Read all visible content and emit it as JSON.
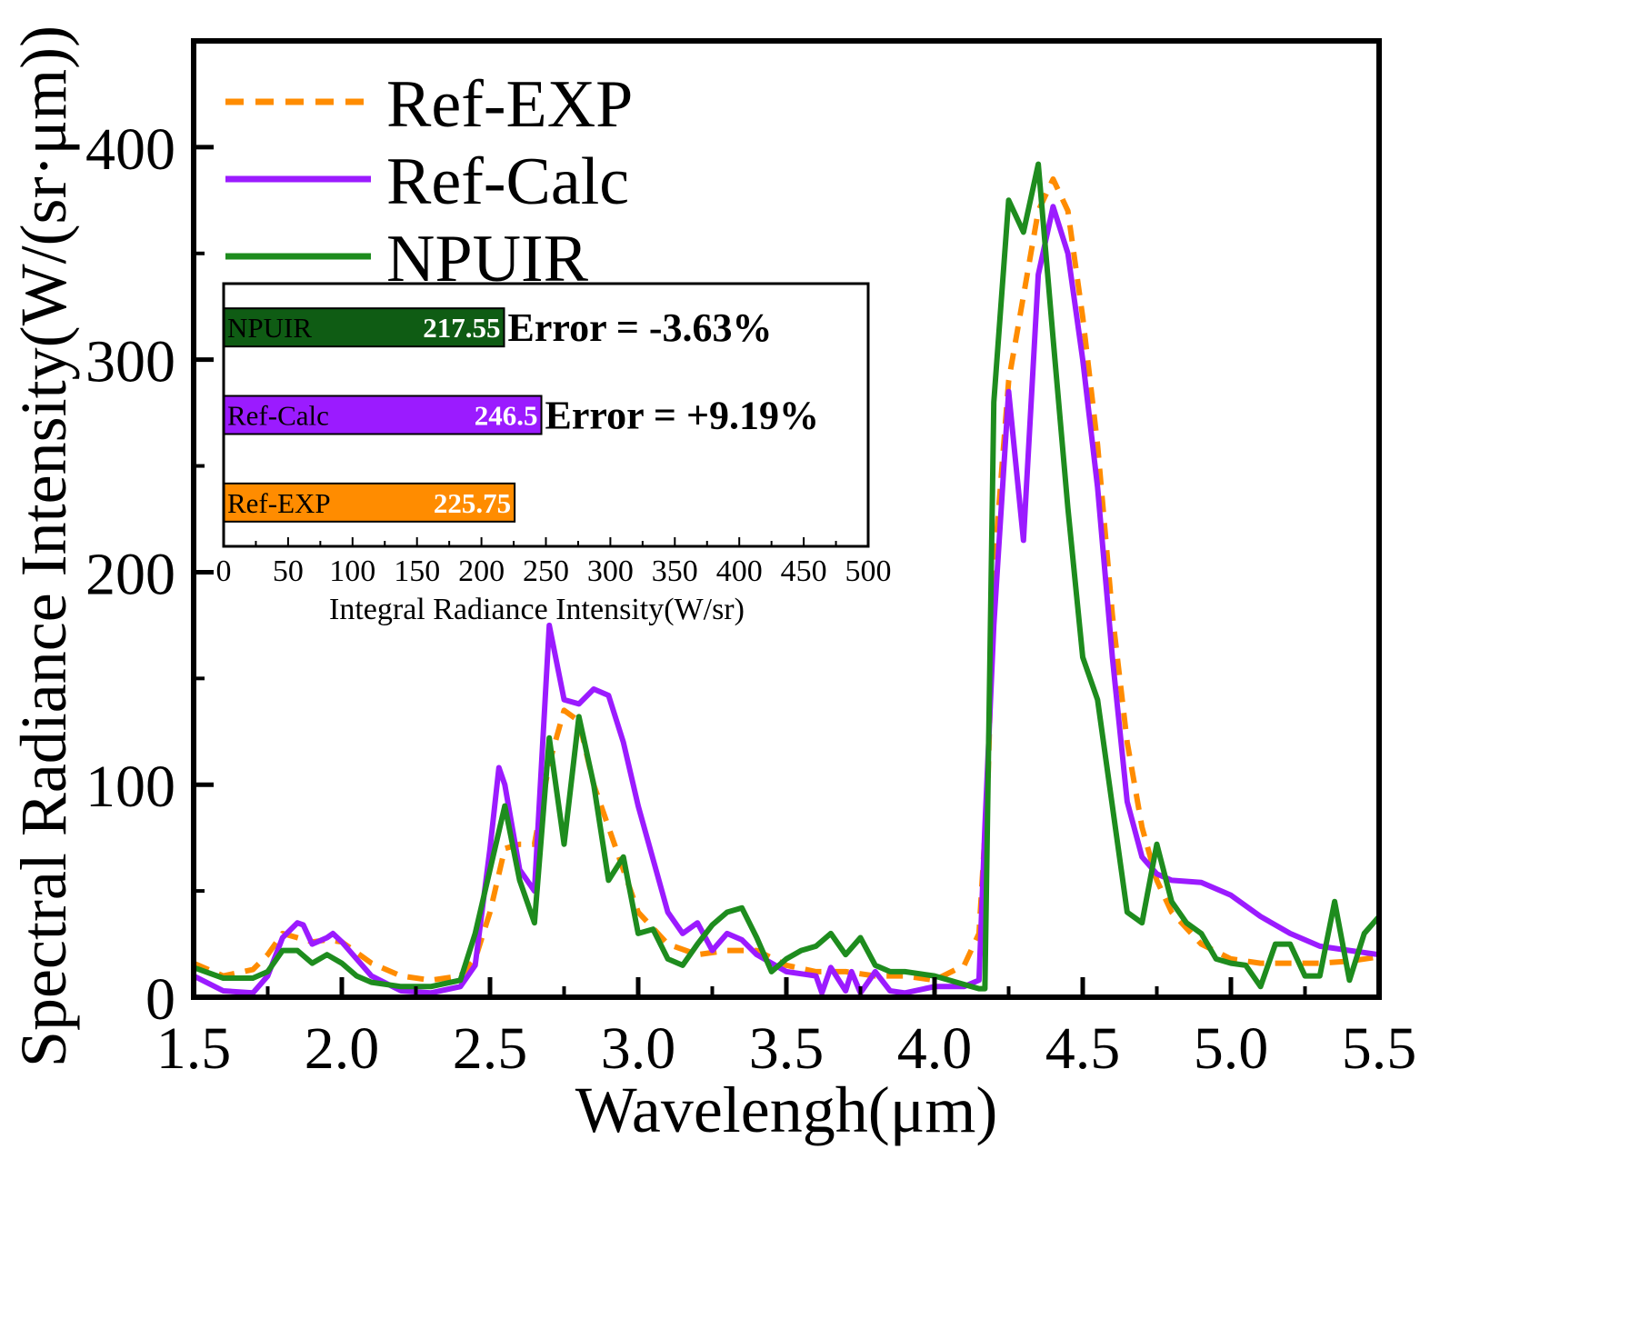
{
  "chart_data": [
    {
      "type": "line",
      "title": "",
      "xlabel": "Wavelengh(μm)",
      "ylabel": "Spectral Radiance Intensity(W/(sr·μm))",
      "xlim": [
        1.5,
        5.5
      ],
      "ylim": [
        0,
        450
      ],
      "xticks": [
        1.5,
        2.0,
        2.5,
        3.0,
        3.5,
        4.0,
        4.5,
        5.0,
        5.5
      ],
      "xtick_labels": [
        "1.5",
        "2.0",
        "2.5",
        "3.0",
        "3.5",
        "4.0",
        "4.5",
        "5.0",
        "5.5"
      ],
      "yticks": [
        0,
        100,
        200,
        300,
        400
      ],
      "ytick_labels": [
        "0",
        "100",
        "200",
        "300",
        "400"
      ],
      "grid": false,
      "legend_position": "top-left",
      "series": [
        {
          "name": "Ref-EXP",
          "color": "#FF8C00",
          "style": "dashed",
          "x": [
            1.5,
            1.6,
            1.7,
            1.75,
            1.8,
            1.85,
            1.9,
            1.95,
            2.0,
            2.1,
            2.2,
            2.3,
            2.4,
            2.45,
            2.5,
            2.55,
            2.6,
            2.65,
            2.7,
            2.75,
            2.8,
            2.85,
            2.9,
            2.95,
            3.0,
            3.1,
            3.2,
            3.3,
            3.4,
            3.5,
            3.6,
            3.7,
            3.8,
            3.9,
            4.0,
            4.1,
            4.15,
            4.18,
            4.2,
            4.25,
            4.3,
            4.35,
            4.4,
            4.45,
            4.5,
            4.55,
            4.6,
            4.65,
            4.7,
            4.75,
            4.8,
            4.9,
            5.0,
            5.1,
            5.2,
            5.3,
            5.4,
            5.5
          ],
          "y": [
            16,
            10,
            13,
            20,
            30,
            28,
            26,
            27,
            26,
            16,
            10,
            8,
            10,
            18,
            40,
            70,
            72,
            72,
            110,
            135,
            130,
            100,
            80,
            60,
            40,
            25,
            20,
            22,
            22,
            15,
            12,
            12,
            10,
            10,
            8,
            15,
            30,
            100,
            200,
            290,
            330,
            370,
            385,
            370,
            320,
            260,
            180,
            120,
            80,
            55,
            40,
            25,
            18,
            16,
            16,
            16,
            17,
            19
          ]
        },
        {
          "name": "Ref-Calc",
          "color": "#9B1BFF",
          "style": "solid",
          "x": [
            1.5,
            1.6,
            1.7,
            1.75,
            1.8,
            1.85,
            1.87,
            1.9,
            1.95,
            1.97,
            2.0,
            2.1,
            2.2,
            2.3,
            2.4,
            2.45,
            2.5,
            2.53,
            2.55,
            2.6,
            2.65,
            2.7,
            2.75,
            2.8,
            2.85,
            2.9,
            2.95,
            3.0,
            3.05,
            3.1,
            3.15,
            3.2,
            3.25,
            3.3,
            3.35,
            3.4,
            3.5,
            3.6,
            3.62,
            3.65,
            3.7,
            3.72,
            3.75,
            3.8,
            3.85,
            3.9,
            4.0,
            4.1,
            4.15,
            4.17,
            4.2,
            4.25,
            4.3,
            4.35,
            4.4,
            4.45,
            4.5,
            4.55,
            4.6,
            4.65,
            4.7,
            4.75,
            4.8,
            4.9,
            5.0,
            5.1,
            5.2,
            5.3,
            5.4,
            5.5
          ],
          "y": [
            10,
            3,
            2,
            10,
            28,
            35,
            34,
            25,
            28,
            30,
            26,
            10,
            3,
            2,
            5,
            15,
            70,
            108,
            100,
            60,
            50,
            175,
            140,
            138,
            145,
            142,
            120,
            90,
            65,
            40,
            30,
            35,
            22,
            30,
            27,
            20,
            12,
            10,
            2,
            14,
            3,
            12,
            2,
            12,
            3,
            2,
            5,
            5,
            8,
            80,
            175,
            285,
            215,
            340,
            372,
            350,
            300,
            240,
            160,
            92,
            66,
            58,
            55,
            54,
            48,
            38,
            30,
            24,
            22,
            20
          ]
        },
        {
          "name": "NPUIR",
          "color": "#1E8C1E",
          "style": "solid",
          "x": [
            1.5,
            1.6,
            1.7,
            1.75,
            1.8,
            1.85,
            1.9,
            1.95,
            2.0,
            2.05,
            2.1,
            2.2,
            2.3,
            2.4,
            2.45,
            2.5,
            2.55,
            2.6,
            2.65,
            2.7,
            2.75,
            2.8,
            2.85,
            2.9,
            2.95,
            3.0,
            3.05,
            3.1,
            3.15,
            3.2,
            3.25,
            3.3,
            3.35,
            3.4,
            3.45,
            3.5,
            3.55,
            3.6,
            3.65,
            3.7,
            3.75,
            3.8,
            3.85,
            3.9,
            4.0,
            4.1,
            4.15,
            4.17,
            4.2,
            4.25,
            4.3,
            4.35,
            4.4,
            4.45,
            4.5,
            4.55,
            4.6,
            4.65,
            4.7,
            4.75,
            4.8,
            4.85,
            4.9,
            4.95,
            5.0,
            5.05,
            5.1,
            5.15,
            5.2,
            5.25,
            5.3,
            5.35,
            5.4,
            5.45,
            5.5
          ],
          "y": [
            14,
            9,
            9,
            12,
            22,
            22,
            16,
            20,
            16,
            10,
            7,
            5,
            5,
            8,
            30,
            60,
            90,
            55,
            35,
            122,
            72,
            132,
            100,
            55,
            66,
            30,
            32,
            18,
            15,
            25,
            34,
            40,
            42,
            28,
            12,
            18,
            22,
            24,
            30,
            20,
            28,
            15,
            12,
            12,
            10,
            6,
            4,
            4,
            280,
            375,
            360,
            392,
            310,
            230,
            160,
            140,
            90,
            40,
            35,
            72,
            45,
            35,
            30,
            18,
            16,
            15,
            5,
            25,
            25,
            10,
            10,
            45,
            8,
            30,
            38
          ]
        }
      ]
    },
    {
      "type": "bar",
      "orientation": "horizontal",
      "title": "",
      "xlabel": "Integral Radiance Intensity(W/sr)",
      "ylabel": "",
      "xlim": [
        0,
        500
      ],
      "xticks": [
        0,
        50,
        100,
        150,
        200,
        250,
        300,
        350,
        400,
        450,
        500
      ],
      "xtick_labels": [
        "0",
        "50",
        "100",
        "150",
        "200",
        "250",
        "300",
        "350",
        "400",
        "450",
        "500"
      ],
      "categories": [
        "NPUIR",
        "Ref-Calc",
        "Ref-EXP"
      ],
      "values": [
        217.55,
        246.5,
        225.75
      ],
      "value_labels": [
        "217.55",
        "246.5",
        "225.75"
      ],
      "colors": [
        "#0F5C14",
        "#9B1BFF",
        "#FF8C00"
      ],
      "annotations": [
        "Error = -3.63%",
        "Error = +9.19%",
        ""
      ]
    }
  ]
}
